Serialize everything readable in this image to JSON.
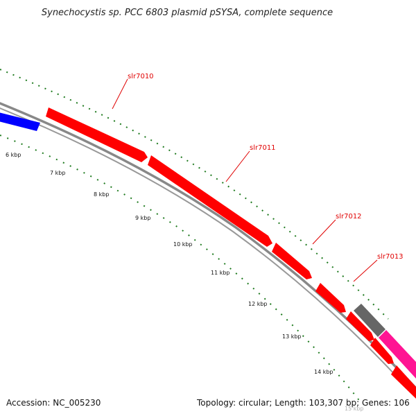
{
  "title": "Synechocystis sp. PCC 6803 plasmid pSYSA, complete sequence",
  "accession_text": "Accession: NC_005230",
  "summary_text": "Topology: circular; Length: 103,307 bp; Genes: 106",
  "genes": [
    {
      "label": "slr7010",
      "color": "#ff0000"
    },
    {
      "label": "slr7011",
      "color": "#ff0000"
    },
    {
      "label": "slr7012",
      "color": "#ff0000"
    },
    {
      "label": "slr7013",
      "color": "#ff0000"
    }
  ],
  "kbp_ticks": [
    "6 kbp",
    "7 kbp",
    "8 kbp",
    "9 kbp",
    "10 kbp",
    "11 kbp",
    "12 kbp",
    "13 kbp",
    "14 kbp",
    "15 kbp"
  ],
  "colors": {
    "forward_gene": "#ff0000",
    "other_gene_blue": "#0000ff",
    "other_gene_gray": "#666666",
    "other_gene_magenta": "#ff1493",
    "backbone": "#888888",
    "tick_green": "#1e7a1e",
    "label_red": "#e00000"
  }
}
